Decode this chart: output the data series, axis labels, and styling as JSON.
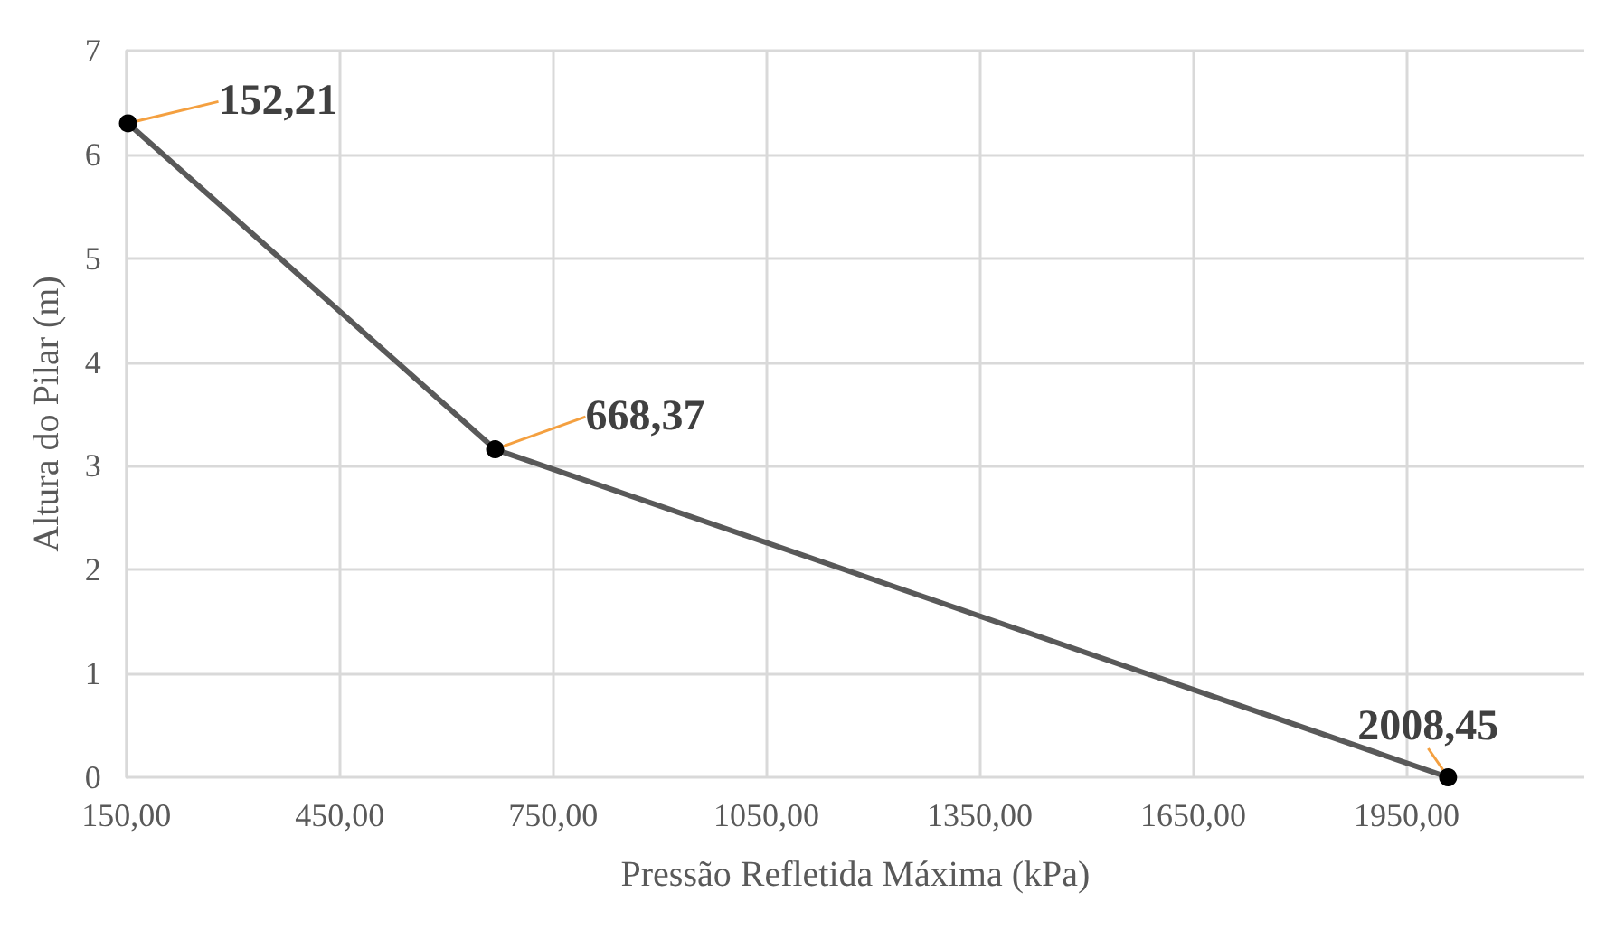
{
  "chart_data": {
    "type": "line",
    "xlabel": "Pressão Refletida Máxima (kPa)",
    "ylabel": "Altura do Pilar (m)",
    "x": [
      152.21,
      668.37,
      2008.45
    ],
    "series": [
      {
        "color": "#595959",
        "values": [
          6.3,
          3.16,
          0
        ]
      }
    ],
    "annotations": [
      {
        "text": "152,21",
        "x": 152.21,
        "y": 6.3
      },
      {
        "text": "668,37",
        "x": 668.37,
        "y": 3.16
      },
      {
        "text": "2008,45",
        "x": 2008.45,
        "y": 0
      }
    ],
    "xlim": [
      150,
      2200
    ],
    "xticks": [
      {
        "value": 150,
        "label": "150,00"
      },
      {
        "value": 450,
        "label": "450,00"
      },
      {
        "value": 750,
        "label": "750,00"
      },
      {
        "value": 1050,
        "label": "1050,00"
      },
      {
        "value": 1350,
        "label": "1350,00"
      },
      {
        "value": 1650,
        "label": "1650,00"
      },
      {
        "value": 1950,
        "label": "1950,00"
      }
    ],
    "ylim": [
      0,
      7
    ],
    "yticks": [
      0,
      1,
      2,
      3,
      4,
      5,
      6,
      7
    ],
    "grid": true,
    "marker": "circle",
    "line_style": "solid"
  }
}
